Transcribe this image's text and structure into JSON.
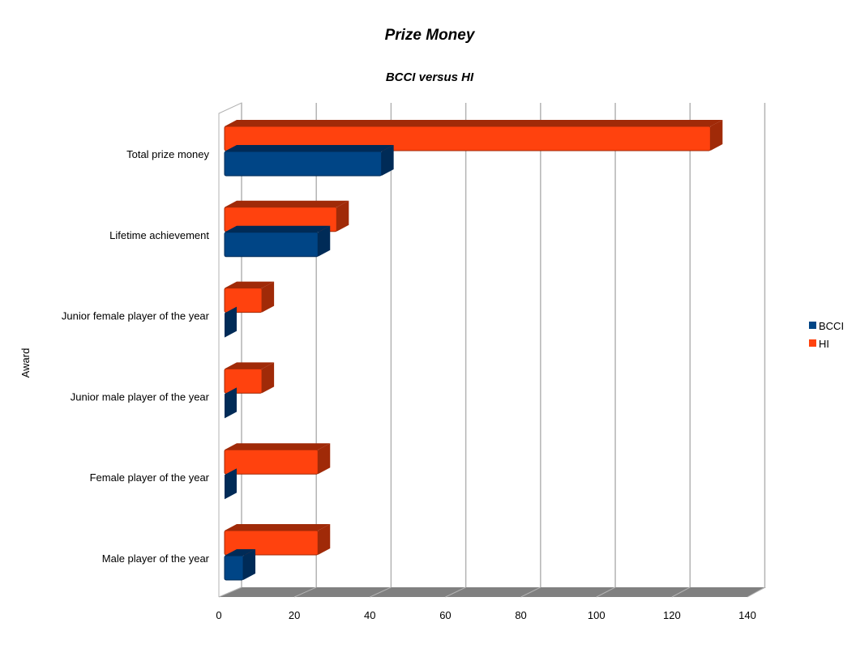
{
  "chart_data": {
    "type": "bar",
    "orientation": "horizontal",
    "style": "3d",
    "title": "Prize Money",
    "subtitle": "BCCI versus HI",
    "xlabel": "",
    "ylabel": "Award",
    "xlim": [
      0,
      140
    ],
    "xticks": [
      0,
      20,
      40,
      60,
      80,
      100,
      120,
      140
    ],
    "grid": true,
    "legend_position": "right",
    "categories": [
      "Total prize money",
      "Lifetime achievement",
      "Junior female player of the year",
      "Junior male player of the year",
      "Female player of the year",
      "Male player of the year"
    ],
    "series": [
      {
        "name": "BCCI",
        "color": "#004586",
        "values": [
          42,
          25,
          0,
          0,
          0,
          5
        ]
      },
      {
        "name": "HI",
        "color": "#ff420e",
        "values": [
          130,
          30,
          10,
          10,
          25,
          25
        ]
      }
    ]
  }
}
